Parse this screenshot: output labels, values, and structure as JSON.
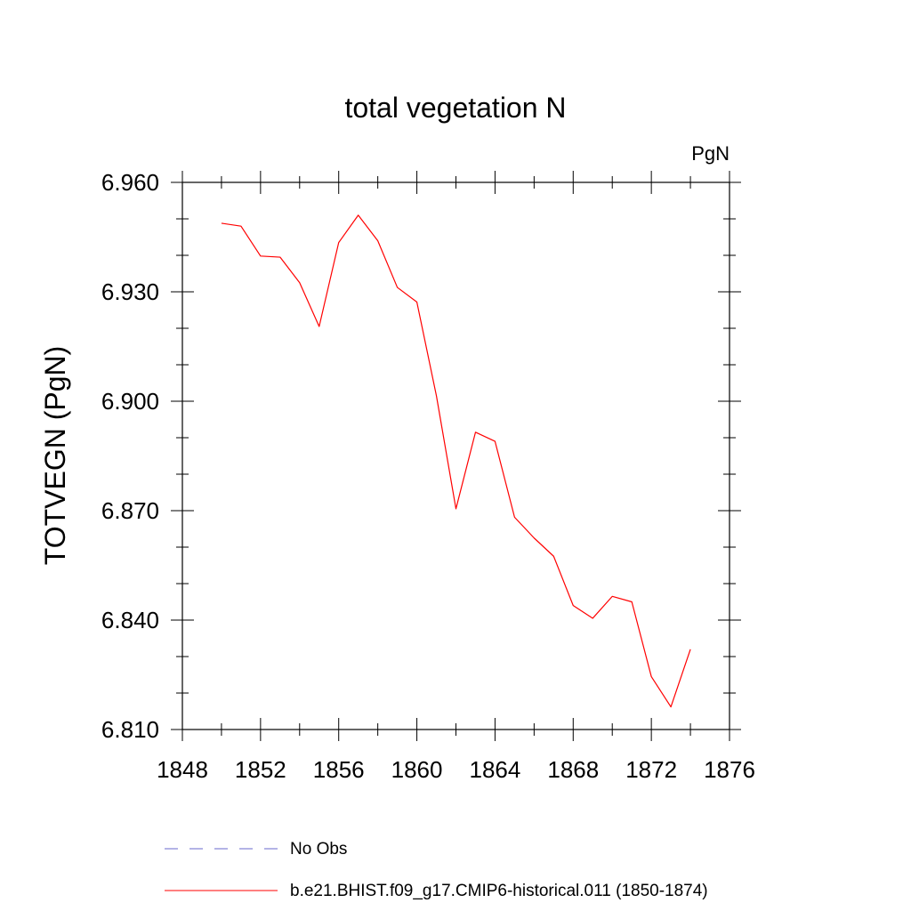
{
  "chart_data": {
    "type": "line",
    "title": "total vegetation N",
    "units_label": "PgN",
    "xlabel": "",
    "ylabel": "TOTVEGN  (PgN)",
    "xlim": [
      1848,
      1876
    ],
    "ylim": [
      6.81,
      6.96
    ],
    "x_ticks": [
      "1848",
      "1852",
      "1856",
      "1860",
      "1864",
      "1868",
      "1872",
      "1876"
    ],
    "y_ticks": [
      "6.810",
      "6.840",
      "6.870",
      "6.900",
      "6.930",
      "6.960"
    ],
    "grid": false,
    "legend_position": "bottom",
    "series": [
      {
        "name": "b.e21.BHIST.f09_g17.CMIP6-historical.011 (1850-1874)",
        "color": "#ff0000",
        "style": "solid",
        "x": [
          1850,
          1851,
          1852,
          1853,
          1854,
          1855,
          1856,
          1857,
          1858,
          1859,
          1860,
          1861,
          1862,
          1863,
          1864,
          1865,
          1866,
          1867,
          1868,
          1869,
          1870,
          1871,
          1872,
          1873,
          1874
        ],
        "y": [
          6.9488,
          6.948,
          6.9398,
          6.9395,
          6.9325,
          6.9205,
          6.9435,
          6.951,
          6.944,
          6.9312,
          6.9272,
          6.9015,
          6.8705,
          6.8915,
          6.889,
          6.8682,
          6.8625,
          6.8575,
          6.844,
          6.8405,
          6.8465,
          6.845,
          6.8245,
          6.8162,
          6.832
        ]
      }
    ],
    "legend": [
      {
        "label": "No Obs",
        "color": "#6a6acd",
        "style": "dashed"
      },
      {
        "label": "b.e21.BHIST.f09_g17.CMIP6-historical.011 (1850-1874)",
        "color": "#ff0000",
        "style": "solid"
      }
    ]
  }
}
